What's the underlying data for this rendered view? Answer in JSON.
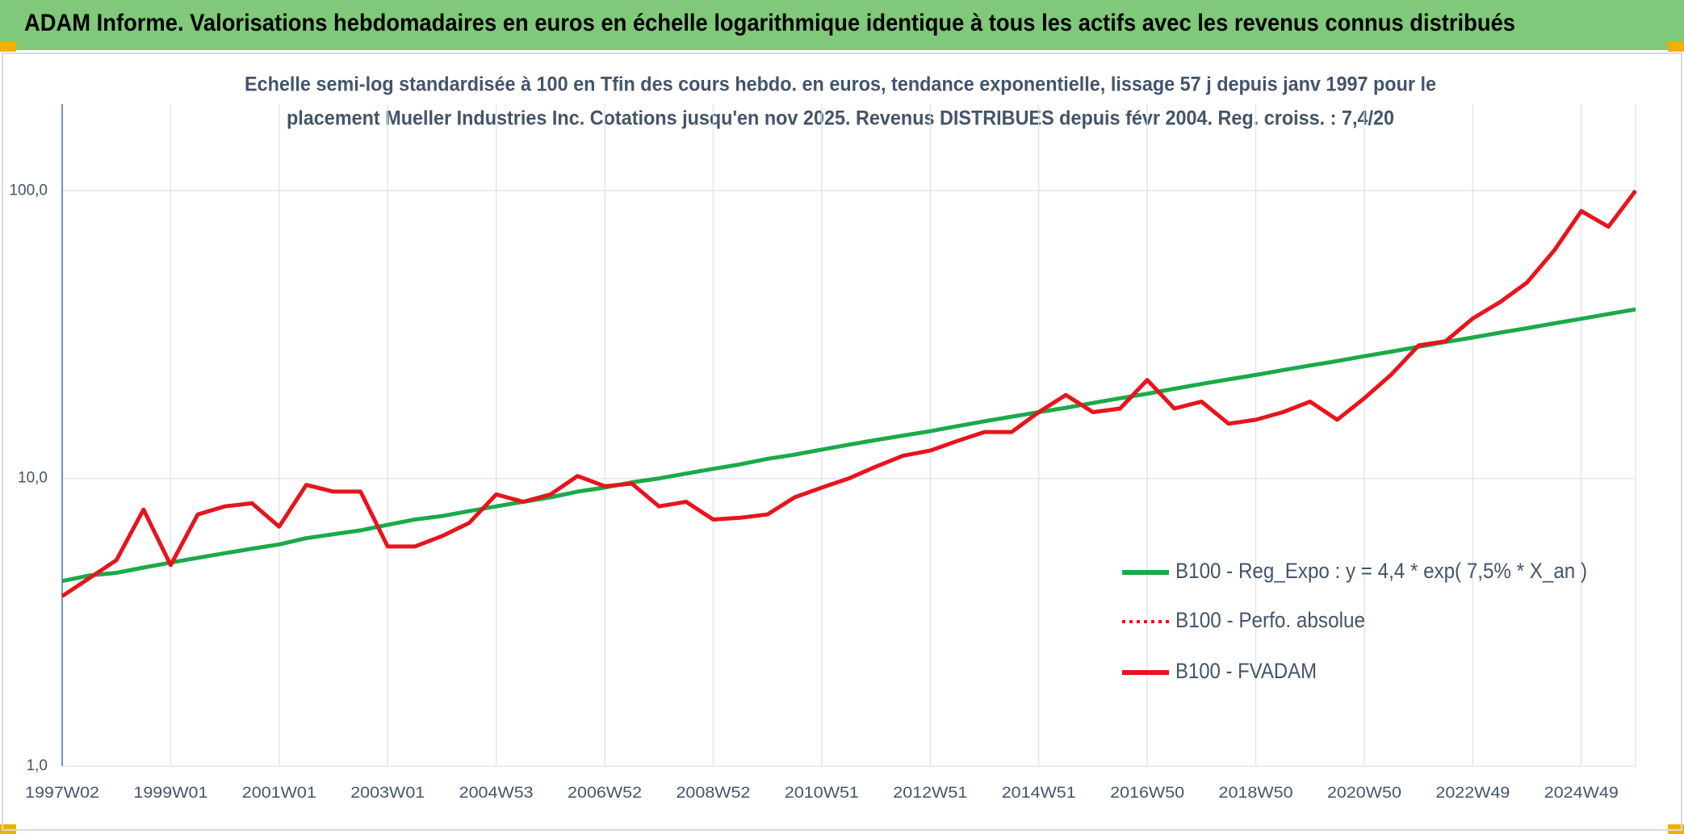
{
  "chart_data": {
    "type": "line",
    "title": "ADAM Informe. Valorisations hebdomadaires en euros en échelle logarithmique identique à tous les actifs avec les revenus connus distribués",
    "subtitle": [
      "Echelle semi-log standardisée à 100 en Tfin des cours hebdo. en euros, tendance exponentielle, lissage 57 j depuis janv 1997 pour le",
      "placement Mueller Industries Inc. Cotations jusqu'en nov 2025. Revenus DISTRIBUES depuis févr 2004. Reg. croiss. : 7,4/20"
    ],
    "categories": [
      "1997W02",
      null,
      null,
      null,
      "1999W01",
      null,
      null,
      null,
      "2001W01",
      null,
      null,
      null,
      "2003W01",
      null,
      null,
      null,
      "2004W53",
      null,
      null,
      null,
      "2006W52",
      null,
      null,
      null,
      "2008W52",
      null,
      null,
      null,
      "2010W51",
      null,
      null,
      null,
      "2012W51",
      null,
      null,
      null,
      "2014W51",
      null,
      null,
      null,
      "2016W50",
      null,
      null,
      null,
      "2018W50",
      null,
      null,
      null,
      "2020W50",
      null,
      null,
      null,
      "2022W49",
      null,
      null,
      null,
      "2024W49",
      null,
      null
    ],
    "series": [
      {
        "name": "B100 - Reg_Expo : y = 4,4 * exp( 7,5% *  X_an )",
        "color": "#1aaa4a",
        "style": "solid",
        "values": [
          4.4,
          4.6,
          4.7,
          4.9,
          5.1,
          5.3,
          5.5,
          5.7,
          5.9,
          6.2,
          6.4,
          6.6,
          6.9,
          7.2,
          7.4,
          7.7,
          8.0,
          8.3,
          8.6,
          9.0,
          9.3,
          9.7,
          10.0,
          10.4,
          10.8,
          11.2,
          11.7,
          12.1,
          12.6,
          13.1,
          13.6,
          14.1,
          14.6,
          15.2,
          15.8,
          16.4,
          17.0,
          17.6,
          18.3,
          19.0,
          19.7,
          20.5,
          21.3,
          22.1,
          22.9,
          23.8,
          24.7,
          25.6,
          26.6,
          27.6,
          28.7,
          29.8,
          30.9,
          32.1,
          33.3,
          34.6,
          35.9,
          37.3,
          38.7
        ]
      },
      {
        "name": "B100 - Perfo. absolue",
        "color": "#e8141c",
        "style": "dotted",
        "values": [
          3.9,
          4.5,
          5.2,
          7.8,
          5.0,
          7.5,
          8.0,
          8.2,
          6.8,
          9.5,
          9.0,
          9.0,
          5.8,
          5.8,
          6.3,
          7.0,
          8.8,
          8.3,
          8.8,
          10.2,
          9.4,
          9.6,
          8.0,
          8.3,
          7.2,
          7.3,
          7.5,
          8.6,
          9.3,
          10.0,
          11.0,
          12.0,
          12.5,
          13.5,
          14.5,
          14.5,
          17.0,
          19.5,
          17.0,
          17.5,
          22.0,
          17.5,
          18.5,
          15.5,
          16.0,
          17.0,
          18.5,
          16.0,
          19.0,
          23.0,
          29.0,
          30.0,
          36.0,
          41.0,
          48.0,
          62.0,
          85.0,
          75.0,
          100.0
        ]
      },
      {
        "name": "B100 - FVADAM",
        "color": "#e8141c",
        "style": "solid",
        "values": [
          3.9,
          4.5,
          5.2,
          7.8,
          5.0,
          7.5,
          8.0,
          8.2,
          6.8,
          9.5,
          9.0,
          9.0,
          5.8,
          5.8,
          6.3,
          7.0,
          8.8,
          8.3,
          8.8,
          10.2,
          9.4,
          9.6,
          8.0,
          8.3,
          7.2,
          7.3,
          7.5,
          8.6,
          9.3,
          10.0,
          11.0,
          12.0,
          12.5,
          13.5,
          14.5,
          14.5,
          17.0,
          19.5,
          17.0,
          17.5,
          22.0,
          17.5,
          18.5,
          15.5,
          16.0,
          17.0,
          18.5,
          16.0,
          19.0,
          23.0,
          29.0,
          30.0,
          36.0,
          41.0,
          48.0,
          62.0,
          85.0,
          75.0,
          100.0
        ]
      }
    ],
    "ylim": [
      1,
      200
    ],
    "log_y": true,
    "yticks": [
      {
        "value": 1,
        "label": "1,0"
      },
      {
        "value": 10,
        "label": "10,0"
      },
      {
        "value": 100,
        "label": "100,0"
      }
    ],
    "grid": true,
    "legend": "right"
  }
}
